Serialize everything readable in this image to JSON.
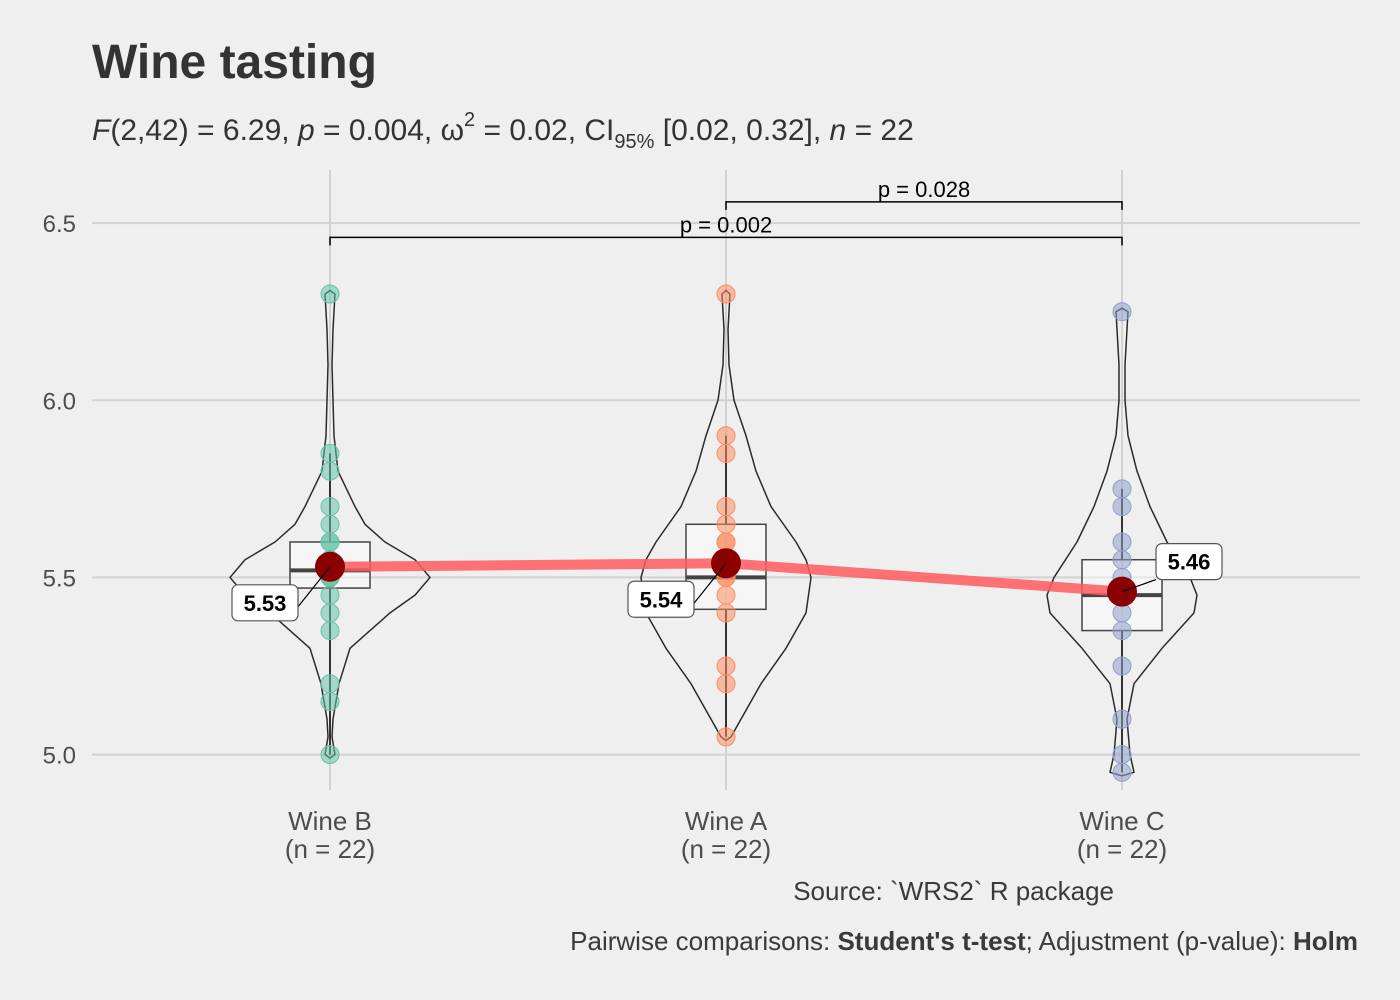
{
  "chart_data": {
    "type": "violin-box-scatter",
    "title": "Wine tasting",
    "subtitle": {
      "F_label": "F",
      "F_value": "(2,42) = 6.29, ",
      "p_label": "p",
      "p_value": " = 0.004, ",
      "omega": "ω",
      "omega_sup": "2",
      "omega_value": " = 0.02, CI",
      "ci_sub": "95%",
      "ci_value": " [0.02, 0.32], ",
      "n_label": "n",
      "n_value": " = 22"
    },
    "ylim": [
      4.9,
      6.65
    ],
    "yticks": [
      5.0,
      5.5,
      6.0,
      6.5
    ],
    "ytick_labels": [
      "5.0",
      "5.5",
      "6.0",
      "6.5"
    ],
    "categories": [
      "Wine B",
      "Wine A",
      "Wine C"
    ],
    "category_n": [
      "(n = 22)",
      "(n = 22)",
      "(n = 22)"
    ],
    "colors": [
      "#66c2a5",
      "#fc8d62",
      "#8da0cb"
    ],
    "mean_color": "#8b0000",
    "mean_line_color": "#ff5a5f",
    "series": [
      {
        "name": "Wine B",
        "points": [
          5.0,
          5.15,
          5.2,
          5.35,
          5.4,
          5.45,
          5.5,
          5.5,
          5.5,
          5.55,
          5.55,
          5.55,
          5.6,
          5.6,
          5.65,
          5.7,
          5.8,
          5.85,
          6.3
        ],
        "box": {
          "q1": 5.47,
          "median": 5.52,
          "q3": 5.6,
          "whisker_low": 5.0,
          "whisker_high": 5.85
        },
        "mean": 5.53,
        "mean_label": "5.53"
      },
      {
        "name": "Wine A",
        "points": [
          5.05,
          5.2,
          5.25,
          5.4,
          5.45,
          5.5,
          5.5,
          5.55,
          5.55,
          5.6,
          5.6,
          5.65,
          5.7,
          5.85,
          5.9,
          6.3
        ],
        "box": {
          "q1": 5.41,
          "median": 5.5,
          "q3": 5.65,
          "whisker_low": 5.05,
          "whisker_high": 5.9
        },
        "mean": 5.54,
        "mean_label": "5.54"
      },
      {
        "name": "Wine C",
        "points": [
          4.95,
          5.0,
          5.1,
          5.25,
          5.35,
          5.4,
          5.45,
          5.45,
          5.5,
          5.55,
          5.6,
          5.7,
          5.75,
          6.25
        ],
        "box": {
          "q1": 5.35,
          "median": 5.45,
          "q3": 5.55,
          "whisker_low": 4.95,
          "whisker_high": 5.75
        },
        "mean": 5.46,
        "mean_label": "5.46"
      }
    ],
    "violins": [
      {
        "profile": [
          [
            4.99,
            0.0
          ],
          [
            5.0,
            0.05
          ],
          [
            5.05,
            0.02
          ],
          [
            5.1,
            0.03
          ],
          [
            5.2,
            0.09
          ],
          [
            5.3,
            0.2
          ],
          [
            5.4,
            0.6
          ],
          [
            5.45,
            0.85
          ],
          [
            5.5,
            1.0
          ],
          [
            5.55,
            0.85
          ],
          [
            5.6,
            0.55
          ],
          [
            5.65,
            0.35
          ],
          [
            5.7,
            0.25
          ],
          [
            5.8,
            0.08
          ],
          [
            5.9,
            0.04
          ],
          [
            6.0,
            0.03
          ],
          [
            6.1,
            0.02
          ],
          [
            6.2,
            0.03
          ],
          [
            6.25,
            0.04
          ],
          [
            6.3,
            0.05
          ],
          [
            6.31,
            0.0
          ]
        ]
      },
      {
        "profile": [
          [
            5.04,
            0.0
          ],
          [
            5.05,
            0.05
          ],
          [
            5.1,
            0.15
          ],
          [
            5.2,
            0.35
          ],
          [
            5.3,
            0.6
          ],
          [
            5.4,
            0.8
          ],
          [
            5.5,
            0.85
          ],
          [
            5.55,
            0.8
          ],
          [
            5.6,
            0.7
          ],
          [
            5.7,
            0.45
          ],
          [
            5.8,
            0.3
          ],
          [
            5.9,
            0.2
          ],
          [
            6.0,
            0.08
          ],
          [
            6.1,
            0.03
          ],
          [
            6.2,
            0.02
          ],
          [
            6.25,
            0.03
          ],
          [
            6.3,
            0.04
          ],
          [
            6.31,
            0.0
          ]
        ]
      },
      {
        "profile": [
          [
            4.94,
            0.0
          ],
          [
            4.95,
            0.12
          ],
          [
            5.0,
            0.08
          ],
          [
            5.1,
            0.05
          ],
          [
            5.2,
            0.12
          ],
          [
            5.3,
            0.4
          ],
          [
            5.4,
            0.72
          ],
          [
            5.45,
            0.75
          ],
          [
            5.5,
            0.68
          ],
          [
            5.6,
            0.45
          ],
          [
            5.7,
            0.28
          ],
          [
            5.8,
            0.15
          ],
          [
            5.9,
            0.06
          ],
          [
            6.0,
            0.03
          ],
          [
            6.1,
            0.03
          ],
          [
            6.2,
            0.05
          ],
          [
            6.25,
            0.06
          ],
          [
            6.26,
            0.0
          ]
        ]
      }
    ],
    "comparisons": [
      {
        "from": 1,
        "to": 2,
        "label": "p = 0.028",
        "y": 6.56
      },
      {
        "from": 0,
        "to": 2,
        "label": "p = 0.002",
        "y": 6.46
      }
    ],
    "caption_source": "Source: `WRS2` R package",
    "caption_pairwise": {
      "prefix": "Pairwise comparisons: ",
      "test": "Student's t-test",
      "middle": "; Adjustment (p-value): ",
      "method": "Holm"
    }
  }
}
